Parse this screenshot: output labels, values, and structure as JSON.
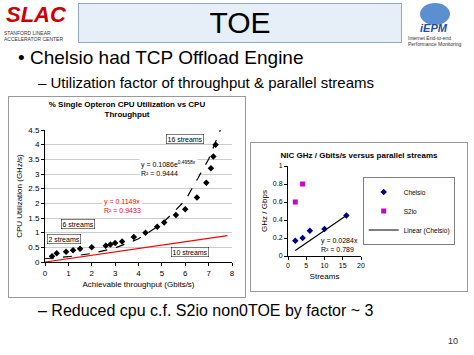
{
  "header": {
    "title": "TOE",
    "logo_left": "SLAC",
    "logo_left_caption": "STANFORD LINEAR ACCELERATOR CENTER",
    "logo_right": "iEPM",
    "logo_right_caption": "Internet End-to-end Performance Monitoring"
  },
  "bullets": [
    "• Chelsio had TCP Offload Engine",
    "– Utilization factor of throughput & parallel streams"
  ],
  "bottom_bullet": "– Reduced cpu c.f. S2io non0TOE by factor ~ 3",
  "page_number": "10",
  "chart_data": [
    {
      "type": "scatter",
      "title": "% Single Opteron CPU Utilization vs CPU Throughput",
      "x_label": "Achievable throughput (Gbits/s)",
      "y_label": "CPU Utilization (GHz/s)",
      "xlim": [
        0,
        8
      ],
      "xticks": [
        0,
        1,
        2,
        3,
        4,
        5,
        6,
        7,
        8
      ],
      "ylim": [
        0,
        4.5
      ],
      "yticks": [
        0,
        0.5,
        1,
        1.5,
        2,
        2.5,
        3,
        3.5,
        4,
        4.5
      ],
      "grid": true,
      "series": [
        {
          "type": "scatter",
          "marker": "diamond",
          "color": "#000000",
          "x": [
            0.3,
            0.5,
            0.9,
            1.2,
            1.5,
            2.0,
            2.6,
            2.8,
            3.0,
            3.3,
            3.8,
            4.3,
            4.8,
            5.1,
            5.6,
            6.0,
            6.5,
            6.9,
            7.1,
            7.2,
            7.3
          ],
          "values": [
            0.2,
            0.3,
            0.35,
            0.4,
            0.45,
            0.5,
            0.55,
            0.6,
            0.65,
            0.7,
            0.85,
            1.0,
            1.2,
            1.35,
            1.6,
            1.8,
            2.2,
            2.7,
            3.2,
            3.6,
            4.0
          ]
        },
        {
          "type": "line",
          "line_style": "dash",
          "color": "#000000",
          "x": [
            0,
            1,
            2,
            3,
            4,
            5,
            6,
            7,
            7.5
          ],
          "values": [
            0.11,
            0.18,
            0.29,
            0.48,
            0.79,
            1.3,
            2.1,
            3.5,
            4.5
          ],
          "equation": "y = 0.1086e",
          "exponent": "0.4958x",
          "r2": "R² = 0.9444",
          "label_x": 5.3,
          "label_y": 3.2
        },
        {
          "type": "line",
          "line_style": "solid",
          "color": "#ff0000",
          "x": [
            0,
            7.8
          ],
          "values": [
            0,
            0.9
          ],
          "equation": "y = 0.1149x",
          "r2": "R² = 0.9433",
          "label_x": 3.3,
          "label_y": 1.9
        }
      ],
      "annotations": [
        {
          "text": "16 streams",
          "x": 6.0,
          "y": 4.2
        },
        {
          "text": "6 streams",
          "x": 1.4,
          "y": 1.3
        },
        {
          "text": "2 streams",
          "x": 0.8,
          "y": 0.8
        },
        {
          "text": "10 streams",
          "x": 6.2,
          "y": 0.35
        }
      ]
    },
    {
      "type": "scatter",
      "title": "NIC GHz / Gbits/s versus parallel streams",
      "x_label": "Streams",
      "y_label": "GHz / Gbps",
      "xlim": [
        0,
        20
      ],
      "xticks": [
        0,
        5,
        10,
        15,
        20
      ],
      "ylim": [
        0,
        1
      ],
      "yticks": [
        0,
        0.2,
        0.4,
        0.6,
        0.8,
        1
      ],
      "grid": false,
      "legend": "right",
      "series": [
        {
          "name": "Chelsio",
          "type": "scatter",
          "marker": "diamond",
          "color": "#000080",
          "x": [
            2,
            4,
            6,
            10,
            16
          ],
          "values": [
            0.17,
            0.2,
            0.28,
            0.3,
            0.45
          ]
        },
        {
          "name": "S2io",
          "type": "scatter",
          "marker": "square",
          "color": "#cc00cc",
          "x": [
            2,
            4
          ],
          "values": [
            0.6,
            0.8
          ]
        },
        {
          "name": "Linear (Chelsio)",
          "type": "line",
          "line_style": "solid",
          "color": "#000000",
          "x": [
            2,
            16
          ],
          "values": [
            0.06,
            0.45
          ],
          "equation": "y = 0.0284x",
          "r2": "R² = 0.789",
          "label_x": 14,
          "label_y": 0.12
        }
      ]
    }
  ]
}
